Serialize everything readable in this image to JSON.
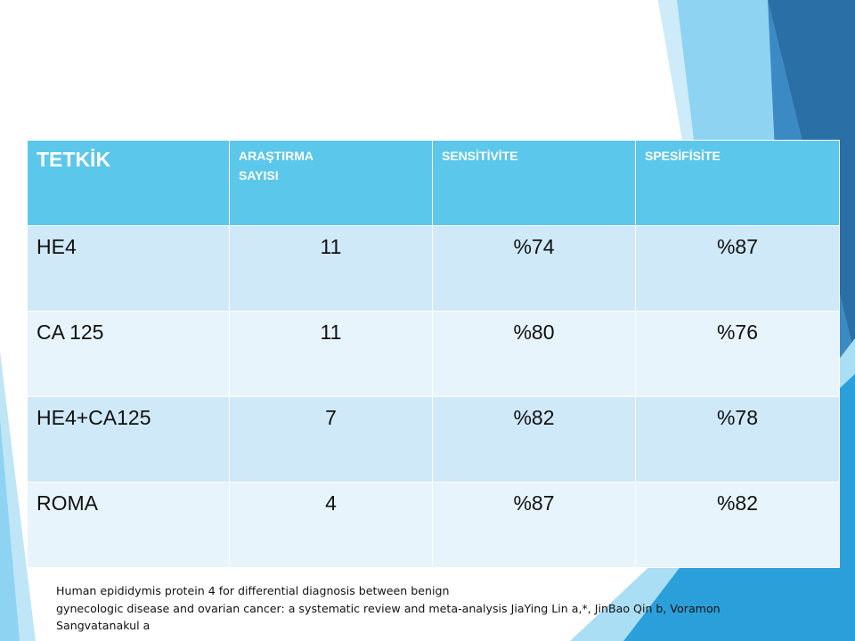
{
  "table": {
    "headers": [
      "TETKİK",
      "ARAŞTIRMA SAYISI",
      "SENSİTİVİTE",
      "SPESİFİSİTE"
    ],
    "rows": [
      [
        "HE4",
        "11",
        "%74",
        "%87"
      ],
      [
        "CA 125",
        "11",
        "%80",
        "%76"
      ],
      [
        "HE4+CA125",
        "7",
        "%82",
        "%78"
      ],
      [
        "ROMA",
        "4",
        "%87",
        "%82"
      ]
    ]
  },
  "source": {
    "line1": "Human epididymis protein 4 for differential diagnosis between benign",
    "line2": "gynecologic disease and ovarian cancer: a systematic review and meta-analysis  JiaYing Lin a,*, JinBao Qin b, Voramon",
    "line3": "Sangvatanakul a"
  },
  "colors": {
    "header_bg": "#5bc7ea",
    "row_odd_bg": "#cfe9f8",
    "row_even_bg": "#e7f4fb",
    "accent_dark": "#2a6fa5",
    "accent_mid": "#2b9fd9",
    "accent_light": "#8fd3f2"
  }
}
